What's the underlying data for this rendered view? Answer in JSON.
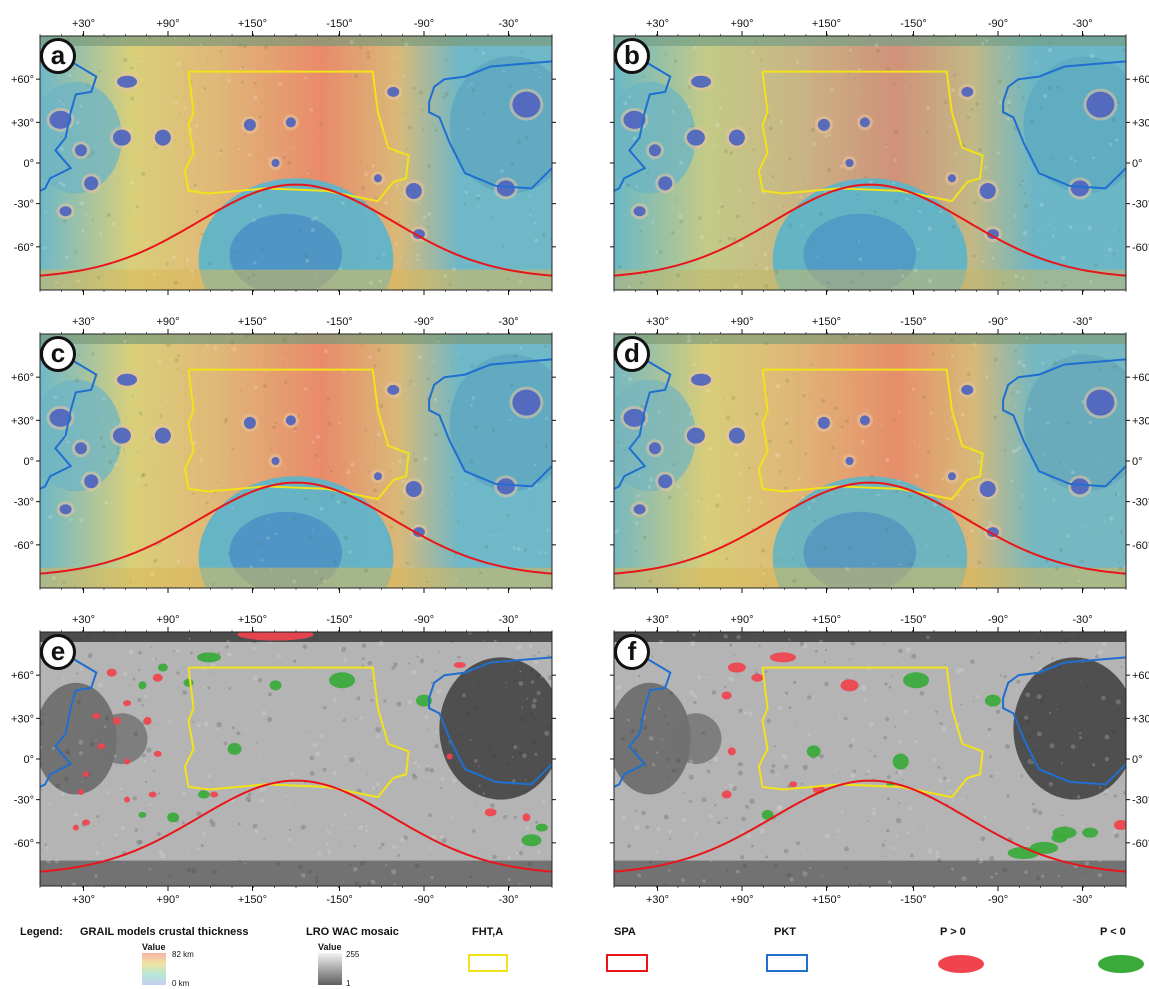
{
  "panels": [
    {
      "letter": "a",
      "type": "thickness",
      "variant": 0
    },
    {
      "letter": "b",
      "type": "thickness",
      "variant": 1
    },
    {
      "letter": "c",
      "type": "thickness",
      "variant": 2
    },
    {
      "letter": "d",
      "type": "thickness",
      "variant": 3
    },
    {
      "letter": "e",
      "type": "mosaic",
      "variant": 0
    },
    {
      "letter": "f",
      "type": "mosaic",
      "variant": 1
    }
  ],
  "lon_ticks": [
    "+30°",
    "+90°",
    "+150°",
    "-150°",
    "-90°",
    "-30°"
  ],
  "lat_ticks": [
    "+60°",
    "+30°",
    "0°",
    "-30°",
    "-60°"
  ],
  "legend": {
    "title": "Legend:",
    "grail_label": "GRAIL models crustal thickness",
    "grail_value_label": "Value",
    "grail_max": "82 km",
    "grail_min": "0 km",
    "lro_label": "LRO WAC mosaic",
    "lro_value_label": "Value",
    "lro_max": "255",
    "lro_min": "1",
    "fht_label": "FHT,A",
    "spa_label": "SPA",
    "pkt_label": "PKT",
    "p_pos_label": "P > 0",
    "p_neg_label": "P < 0"
  },
  "colors": {
    "fht": "#f2e21a",
    "spa": "#e8161b",
    "pkt": "#1f6fd1",
    "p_pos": "#f0434e",
    "p_neg": "#3aaa3a",
    "thick_high": "#e98a6a",
    "thick_mid": "#d9cf79",
    "thick_low": "#6fb8c8",
    "thick_basin": "#4a62c0",
    "mosaic_light": "#b4b4b4",
    "mosaic_dark": "#4a4a4a"
  }
}
